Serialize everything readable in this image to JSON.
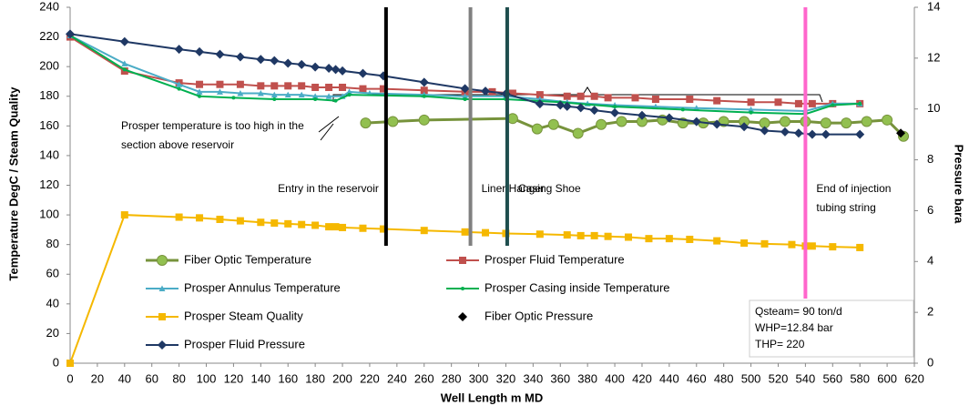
{
  "chart_data": {
    "type": "line",
    "y_label": "Temperature DegC / Steam Quality",
    "y2_label": "Pressure bara",
    "x_label": "Well Length m MD",
    "xlim": [
      0,
      620
    ],
    "xticks": [
      0,
      20,
      40,
      60,
      80,
      100,
      120,
      140,
      160,
      180,
      200,
      220,
      240,
      260,
      280,
      300,
      320,
      340,
      360,
      380,
      400,
      420,
      440,
      460,
      480,
      500,
      520,
      540,
      560,
      580,
      600,
      620
    ],
    "ylim": [
      0,
      240
    ],
    "yticks": [
      0,
      20,
      40,
      60,
      80,
      100,
      120,
      140,
      160,
      180,
      200,
      220,
      240
    ],
    "y2lim": [
      0,
      14
    ],
    "y2ticks": [
      0,
      2,
      4,
      6,
      8,
      10,
      12,
      14
    ],
    "grid": false,
    "series": [
      {
        "name": "Fiber Optic Temperature",
        "color": "#92c050",
        "line_color": "#77933c",
        "marker": "circle",
        "axis": "y",
        "x": [
          217,
          237,
          260,
          325,
          343,
          355,
          373,
          390,
          405,
          420,
          435,
          450,
          465,
          480,
          495,
          510,
          525,
          540,
          555,
          570,
          585,
          600,
          612
        ],
        "values": [
          162,
          163,
          164,
          165,
          158,
          161,
          155,
          161,
          163,
          163,
          164,
          162,
          162,
          163,
          163,
          162,
          163,
          163,
          162,
          162,
          163,
          164,
          153
        ]
      },
      {
        "name": "Prosper Fluid Temperature",
        "color": "#c0504d",
        "marker": "square",
        "axis": "y",
        "x": [
          0,
          40,
          80,
          95,
          110,
          125,
          140,
          150,
          160,
          170,
          180,
          190,
          200,
          215,
          230,
          260,
          290,
          310,
          325,
          345,
          365,
          375,
          385,
          395,
          415,
          430,
          455,
          475,
          500,
          520,
          535,
          545,
          560,
          580
        ],
        "values": [
          220,
          197,
          189,
          188,
          188,
          188,
          187,
          187,
          187,
          187,
          186,
          186,
          186,
          185,
          185,
          184,
          183,
          183,
          182,
          181,
          180,
          180,
          180,
          179,
          179,
          178,
          178,
          177,
          176,
          176,
          175,
          175,
          175,
          175
        ]
      },
      {
        "name": "Prosper Annulus Temperature",
        "color": "#4bacc6",
        "marker": "triangle",
        "axis": "y",
        "x": [
          0,
          40,
          80,
          95,
          110,
          125,
          140,
          150,
          160,
          170,
          180,
          190,
          200,
          205,
          220,
          260,
          290,
          320,
          345,
          365,
          380,
          400,
          430,
          460,
          500,
          540,
          560,
          580
        ],
        "values": [
          221,
          202,
          188,
          183,
          183,
          182,
          182,
          181,
          181,
          181,
          180,
          180,
          180,
          183,
          182,
          181,
          180,
          180,
          178,
          176,
          175,
          174,
          173,
          172,
          171,
          170,
          175,
          175
        ]
      },
      {
        "name": "Prosper Casing inside Temperature",
        "color": "#00b050",
        "marker": "dot",
        "axis": "y",
        "x": [
          0,
          40,
          80,
          95,
          120,
          150,
          180,
          195,
          205,
          260,
          290,
          320,
          360,
          400,
          450,
          500,
          540,
          560,
          580
        ],
        "values": [
          221,
          198,
          185,
          180,
          179,
          178,
          178,
          177,
          181,
          180,
          178,
          178,
          176,
          173,
          171,
          169,
          168,
          174,
          175
        ]
      },
      {
        "name": "Prosper Steam Quality",
        "color": "#f5b800",
        "marker": "square",
        "axis": "y",
        "x": [
          0,
          40,
          80,
          95,
          110,
          125,
          140,
          150,
          160,
          170,
          180,
          190,
          195,
          200,
          215,
          230,
          260,
          290,
          305,
          320,
          345,
          365,
          375,
          385,
          395,
          410,
          425,
          440,
          455,
          475,
          495,
          510,
          530,
          540,
          545,
          560,
          580
        ],
        "values": [
          0,
          100,
          98.5,
          98,
          97,
          96,
          95,
          94.5,
          94,
          93.5,
          93,
          92,
          92,
          91.5,
          91,
          90.5,
          89.5,
          88.5,
          88,
          87.5,
          87,
          86.5,
          86,
          86,
          85.5,
          85,
          84,
          84,
          83.5,
          82.5,
          81,
          80.5,
          80,
          79,
          79,
          78.5,
          78
        ]
      },
      {
        "name": "Fiber Optic Pressure",
        "color": "#000000",
        "marker": "diamond",
        "axis": "y2",
        "line": false,
        "x": [
          610
        ],
        "values": [
          9.05
        ]
      },
      {
        "name": "Prosper Fluid Pressure",
        "color": "#1f3864",
        "marker": "diamond",
        "axis": "y2",
        "x": [
          0,
          40,
          80,
          95,
          110,
          125,
          140,
          150,
          160,
          170,
          180,
          190,
          195,
          200,
          215,
          230,
          260,
          290,
          305,
          320,
          345,
          360,
          365,
          375,
          385,
          400,
          420,
          440,
          460,
          475,
          495,
          510,
          525,
          535,
          545,
          555,
          580
        ],
        "values": [
          12.95,
          12.65,
          12.35,
          12.25,
          12.15,
          12.05,
          11.95,
          11.9,
          11.8,
          11.75,
          11.65,
          11.6,
          11.55,
          11.5,
          11.4,
          11.3,
          11.05,
          10.8,
          10.7,
          10.6,
          10.2,
          10.15,
          10.1,
          10.05,
          9.95,
          9.85,
          9.75,
          9.65,
          9.5,
          9.4,
          9.3,
          9.15,
          9.1,
          9.05,
          9.0,
          9.0,
          9.0
        ]
      }
    ],
    "markers": [
      {
        "x": 232,
        "color": "#000000",
        "text_color": "#000000",
        "label_lines": [
          "Entry in the reservoir"
        ],
        "side": "left"
      },
      {
        "x": 294,
        "color": "#808080",
        "text_color": "#808080",
        "label_lines": [
          "Liner Hanger"
        ],
        "side": "right"
      },
      {
        "x": 321,
        "color": "#1f4e4e",
        "text_color": "#1f4e4e",
        "label_lines": [
          "Casing Shoe"
        ],
        "side": "right"
      },
      {
        "x": 540,
        "color": "#ff66cc",
        "text_color": "#1f4e4e",
        "label_lines": [
          "End of injection",
          "tubing string"
        ],
        "side": "right"
      }
    ],
    "annotation_lines": [
      "Prosper temperature is too high in the",
      "section above reservoir"
    ],
    "info_box": [
      "Qsteam= 90 ton/d",
      "WHP=12.84 bar",
      "THP= 220"
    ]
  }
}
